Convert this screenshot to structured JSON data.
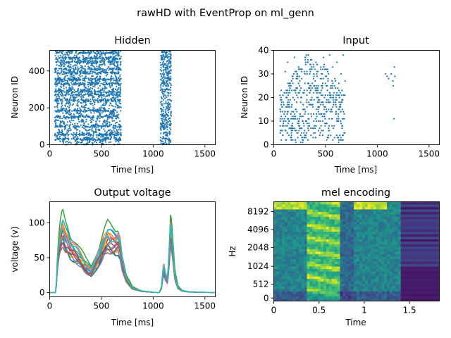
{
  "figure": {
    "title": "rawHD with EventProp on ml_genn"
  },
  "chart_data": [
    {
      "type": "scatter",
      "title": "Hidden",
      "xlabel": "Time [ms]",
      "ylabel": "Neuron ID",
      "xlim": [
        0,
        1600
      ],
      "ylim": [
        0,
        512
      ],
      "xticks": [
        0,
        500,
        1000,
        1500
      ],
      "yticks": [
        0,
        200,
        400
      ],
      "color": "#1f77b4",
      "clusters": [
        {
          "x_range": [
            50,
            690
          ],
          "y_range": [
            0,
            510
          ],
          "density": "dense"
        },
        {
          "x_range": [
            1070,
            1175
          ],
          "y_range": [
            0,
            510
          ],
          "density": "dense"
        }
      ]
    },
    {
      "type": "scatter",
      "title": "Input",
      "xlabel": "Time [ms]",
      "ylabel": "Neuron ID",
      "xlim": [
        0,
        1600
      ],
      "ylim": [
        0,
        40
      ],
      "xticks": [
        0,
        500,
        1000,
        1500
      ],
      "yticks": [
        0,
        10,
        20,
        30,
        40
      ],
      "color": "#1f77b4",
      "points": [
        [
          60,
          21
        ],
        [
          80,
          16
        ],
        [
          100,
          13
        ],
        [
          110,
          31
        ],
        [
          120,
          22
        ],
        [
          135,
          35
        ],
        [
          140,
          9
        ],
        [
          150,
          26
        ],
        [
          160,
          19
        ],
        [
          170,
          5
        ],
        [
          180,
          29
        ],
        [
          190,
          14
        ],
        [
          200,
          37
        ],
        [
          210,
          2
        ],
        [
          220,
          24
        ],
        [
          230,
          11
        ],
        [
          240,
          33
        ],
        [
          250,
          7
        ],
        [
          260,
          18
        ],
        [
          270,
          28
        ],
        [
          280,
          1
        ],
        [
          290,
          15
        ],
        [
          300,
          30
        ],
        [
          310,
          4
        ],
        [
          320,
          21
        ],
        [
          330,
          36
        ],
        [
          340,
          9
        ],
        [
          350,
          25
        ],
        [
          360,
          13
        ],
        [
          370,
          32
        ],
        [
          380,
          3
        ],
        [
          390,
          19
        ],
        [
          400,
          27
        ],
        [
          410,
          8
        ],
        [
          420,
          34
        ],
        [
          430,
          16
        ],
        [
          440,
          22
        ],
        [
          450,
          5
        ],
        [
          460,
          30
        ],
        [
          470,
          12
        ],
        [
          480,
          37
        ],
        [
          490,
          20
        ],
        [
          500,
          26
        ],
        [
          510,
          9
        ],
        [
          520,
          31
        ],
        [
          530,
          15
        ],
        [
          540,
          38
        ],
        [
          550,
          24
        ],
        [
          560,
          11
        ],
        [
          570,
          33
        ],
        [
          580,
          18
        ],
        [
          590,
          28
        ],
        [
          600,
          14
        ],
        [
          610,
          35
        ],
        [
          620,
          21
        ],
        [
          630,
          26
        ],
        [
          640,
          17
        ],
        [
          650,
          30
        ],
        [
          660,
          23
        ],
        [
          670,
          38
        ],
        [
          680,
          13
        ],
        [
          690,
          27
        ],
        [
          1080,
          30
        ],
        [
          1095,
          29
        ],
        [
          1110,
          28
        ],
        [
          1135,
          30
        ],
        [
          1150,
          27
        ],
        [
          1155,
          25
        ],
        [
          1160,
          11
        ],
        [
          1165,
          33
        ],
        [
          1170,
          29
        ]
      ]
    },
    {
      "type": "line",
      "title": "Output voltage",
      "xlabel": "Time [ms]",
      "ylabel": "voltage (v)",
      "xlim": [
        0,
        1600
      ],
      "ylim": [
        -6,
        130
      ],
      "xticks": [
        0,
        500,
        1000,
        1500
      ],
      "yticks": [
        0,
        50,
        100
      ],
      "num_series": 20,
      "series_colors": [
        "#1f77b4",
        "#ff7f0e",
        "#2ca02c",
        "#d62728",
        "#9467bd",
        "#8c564b",
        "#e377c2",
        "#7f7f7f",
        "#bcbd22",
        "#17becf"
      ],
      "envelope": {
        "x": [
          0,
          60,
          75,
          100,
          125,
          150,
          175,
          200,
          250,
          300,
          350,
          400,
          440,
          480,
          520,
          560,
          600,
          640,
          660,
          680,
          700,
          740,
          800,
          900,
          1000,
          1060,
          1080,
          1100,
          1120,
          1140,
          1170,
          1190,
          1210,
          1240,
          1280,
          1350,
          1600
        ],
        "y": [
          0,
          0,
          45,
          80,
          95,
          85,
          80,
          70,
          62,
          50,
          40,
          33,
          45,
          55,
          70,
          82,
          80,
          78,
          80,
          70,
          45,
          20,
          7,
          2,
          0.5,
          0,
          8,
          40,
          25,
          18,
          95,
          60,
          25,
          8,
          3,
          1,
          0
        ]
      }
    },
    {
      "type": "heatmap",
      "title": "mel encoding",
      "xlabel": "Time",
      "ylabel": "Hz",
      "xlim": [
        0,
        1.83
      ],
      "xticks": [
        "0",
        "0.5",
        "1",
        "1.5"
      ],
      "yticks": [
        "0",
        "512",
        "1024",
        "2048",
        "4096",
        "8192"
      ],
      "colormap": "viridis",
      "value_range": [
        0,
        1
      ]
    }
  ]
}
